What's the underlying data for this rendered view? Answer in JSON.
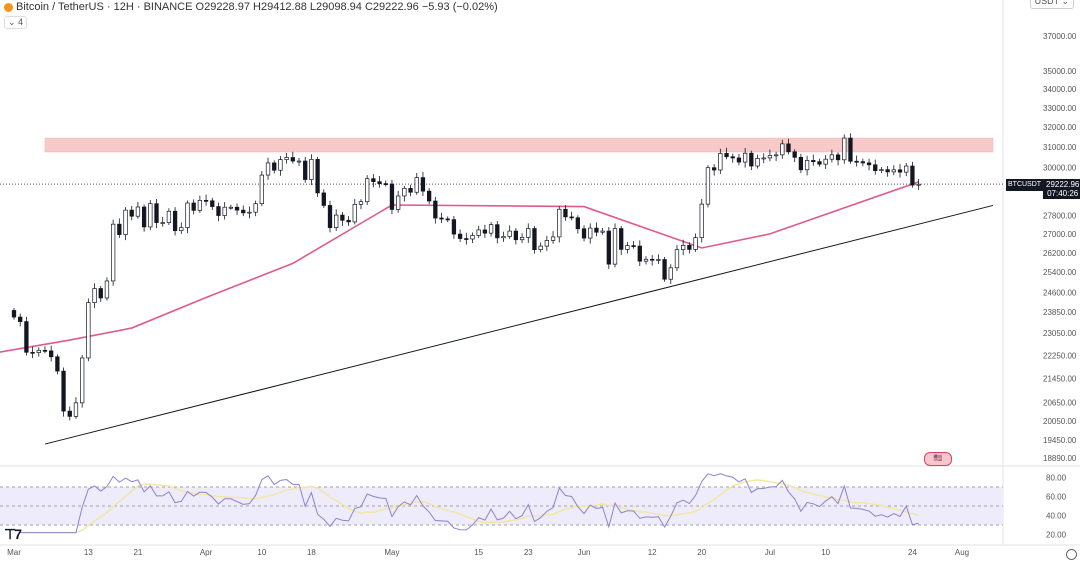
{
  "header": {
    "symbol_line": "Bitcoin / TetherUS · 12H · BINANCE  O29228.97 H29412.88 L29098.94 C29222.96 −5.93 (−0.02%)",
    "collapse_label": "⌄ 4",
    "currency": "USDT ⌄"
  },
  "last_price": {
    "symbol": "BTCUSDT",
    "price": "29222.96",
    "countdown": "07:40:26"
  },
  "events_label": "🇺🇸",
  "logo_text": "TV",
  "colors": {
    "up": "#ffffff",
    "down": "#131722",
    "ma": "#e05a8f",
    "zone": "#f7c9c9",
    "rsi": "#8c83d0",
    "rsi_ma": "#f2e6a0",
    "rsi_band": "#eeebfa"
  },
  "chart_data": {
    "type": "candlestick",
    "scale": "log",
    "ylim": [
      18890,
      37000
    ],
    "y_ticks": [
      "37000.00",
      "35000.00",
      "34000.00",
      "33000.00",
      "32000.00",
      "31000.00",
      "30000.00",
      "27800.00",
      "27000.00",
      "26200.00",
      "25400.00",
      "24600.00",
      "23850.00",
      "23050.00",
      "22250.00",
      "21450.00",
      "20650.00",
      "20050.00",
      "19450.00",
      "18890.00"
    ],
    "x_ticks": [
      [
        "Mar",
        "2023-03-01"
      ],
      [
        "13",
        "2023-03-13"
      ],
      [
        "21",
        "2023-03-21"
      ],
      [
        "Apr",
        "2023-04-01"
      ],
      [
        "10",
        "2023-04-10"
      ],
      [
        "18",
        "2023-04-18"
      ],
      [
        "May",
        "2023-05-01"
      ],
      [
        "15",
        "2023-05-15"
      ],
      [
        "23",
        "2023-05-23"
      ],
      [
        "Jun",
        "2023-06-01"
      ],
      [
        "12",
        "2023-06-12"
      ],
      [
        "20",
        "2023-06-20"
      ],
      [
        "Jul",
        "2023-07-01"
      ],
      [
        "10",
        "2023-07-10"
      ],
      [
        "24",
        "2023-07-24"
      ],
      [
        "Aug",
        "2023-08-01"
      ]
    ],
    "start_date": "2023-03-01",
    "daily_close": [
      23650,
      23480,
      22360,
      22350,
      22430,
      22410,
      22200,
      21700,
      20360,
      20190,
      20630,
      22160,
      24200,
      24750,
      24380,
      25050,
      27420,
      26970,
      28040,
      27770,
      28180,
      27300,
      28330,
      27490,
      27490,
      27990,
      27140,
      27270,
      28360,
      28030,
      28480,
      28460,
      28200,
      27800,
      28170,
      28170,
      28040,
      27920,
      27950,
      28330,
      29650,
      30230,
      29880,
      30390,
      30490,
      30320,
      30320,
      29440,
      30400,
      28820,
      28250,
      27270,
      27820,
      27590,
      27520,
      28300,
      28420,
      29480,
      29340,
      29250,
      29230,
      28070,
      28680,
      29030,
      28850,
      29530,
      28900,
      28450,
      27690,
      27650,
      27620,
      26990,
      26800,
      26780,
      26930,
      27170,
      27030,
      27400,
      26830,
      26890,
      27120,
      26750,
      26850,
      27230,
      26330,
      26480,
      26720,
      26870,
      28080,
      27740,
      27700,
      27220,
      26820,
      27250,
      27070,
      27120,
      25730,
      27230,
      26340,
      26500,
      26480,
      25850,
      25930,
      25900,
      25920,
      25120,
      25580,
      26330,
      26510,
      26340,
      26840,
      28310,
      30000,
      29890,
      30690,
      30530,
      30470,
      30270,
      30700,
      30080,
      30450,
      30470,
      30590,
      30620,
      31160,
      30770,
      30500,
      29900,
      30350,
      30290,
      30170,
      30410,
      30620,
      30380,
      31450,
      30310,
      30290,
      30230,
      30140,
      29860,
      29910,
      29800,
      29900,
      29790,
      30080,
      29180,
      29222.96
    ],
    "moving_average": [
      [
        "2023-02-25",
        22300
      ],
      [
        "2023-03-10",
        22800
      ],
      [
        "2023-03-20",
        23240
      ],
      [
        "2023-04-01",
        24400
      ],
      [
        "2023-04-15",
        25760
      ],
      [
        "2023-05-01",
        28270
      ],
      [
        "2023-06-01",
        28200
      ],
      [
        "2023-06-20",
        26400
      ],
      [
        "2023-07-01",
        27000
      ],
      [
        "2023-07-25",
        29330
      ]
    ],
    "resistance_zone": {
      "low": 30760,
      "high": 31450,
      "from": "2023-03-06",
      "to": "2023-08-06"
    },
    "trendline": [
      [
        "2023-03-06",
        19320
      ],
      [
        "2023-08-06",
        28250
      ]
    ],
    "rsi": {
      "ylim": [
        20,
        85
      ],
      "y_ticks": [
        "80.00",
        "60.00",
        "40.00",
        "20.00"
      ],
      "bands": [
        70,
        50,
        30
      ]
    }
  }
}
